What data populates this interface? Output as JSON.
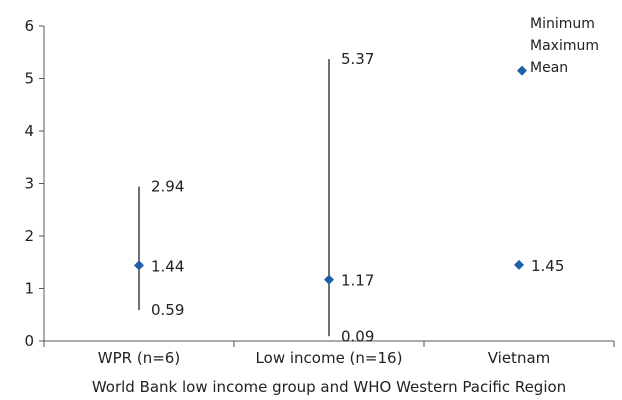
{
  "chart_data": {
    "type": "scatter",
    "categories": [
      "WPR (n=6)",
      "Low income (n=16)",
      "Vietnam"
    ],
    "series": [
      {
        "name": "Minimum",
        "values": [
          0.59,
          0.09,
          null
        ]
      },
      {
        "name": "Maximum",
        "values": [
          2.94,
          5.37,
          null
        ]
      },
      {
        "name": "Mean",
        "values": [
          1.44,
          1.17,
          1.45
        ]
      }
    ],
    "data_labels": {
      "minimum": [
        "0.59",
        "0.09",
        ""
      ],
      "maximum": [
        "2.94",
        "5.37",
        ""
      ],
      "mean": [
        "1.44",
        "1.17",
        "1.45"
      ]
    },
    "xlabel": "World Bank low income group and WHO Western Pacific Region",
    "ylabel": "",
    "ylim": [
      0,
      6
    ],
    "yticks": [
      "0",
      "1",
      "2",
      "3",
      "4",
      "5",
      "6"
    ],
    "legend": {
      "position": "top-right",
      "entries": [
        "Minimum",
        "Maximum",
        "Mean"
      ],
      "mean_sample_value": 5.15
    },
    "grid": false,
    "colors": {
      "marker": "#1f5fa8",
      "line": "#222222",
      "axis": "#555555"
    }
  }
}
